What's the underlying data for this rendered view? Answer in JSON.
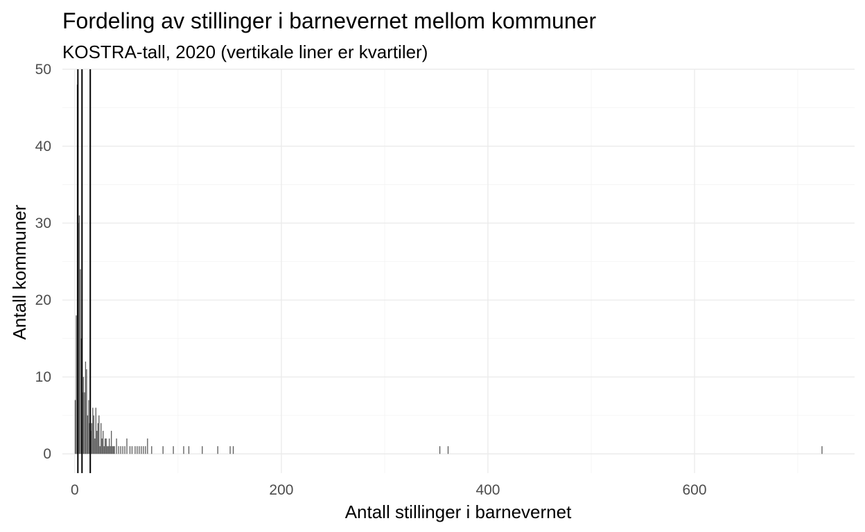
{
  "chart_data": {
    "type": "bar",
    "title": "Fordeling av stillinger i barnevernet mellom kommuner",
    "subtitle": "KOSTRA-tall, 2020 (vertikale liner er kvartiler)",
    "xlabel": "Antall stillinger i barnevernet",
    "ylabel": "Antall kommuner",
    "xlim": [
      -12,
      755
    ],
    "ylim": [
      -2.5,
      50
    ],
    "x_ticks": [
      0,
      200,
      400,
      600
    ],
    "x_minor_ticks": [
      100,
      300,
      500,
      700
    ],
    "y_ticks": [
      0,
      10,
      20,
      30,
      40,
      50
    ],
    "y_minor_ticks": [
      5,
      15,
      25,
      35,
      45
    ],
    "bin_width": 1,
    "bars_x": [
      0,
      1,
      2,
      3,
      4,
      5,
      6,
      7,
      8,
      9,
      10,
      11,
      12,
      13,
      14,
      15,
      16,
      17,
      18,
      19,
      20,
      21,
      22,
      23,
      24,
      25,
      26,
      27,
      28,
      29,
      30,
      31,
      32,
      33,
      34,
      35,
      36,
      37,
      38,
      40,
      42,
      44,
      46,
      48,
      50,
      53,
      55,
      58,
      60,
      62,
      64,
      66,
      68,
      70,
      74,
      85,
      95,
      105,
      110,
      123,
      138,
      150,
      153,
      353,
      361,
      723
    ],
    "bars_y": [
      7,
      18,
      48,
      30,
      31,
      24,
      15,
      8,
      10,
      8,
      12,
      11,
      5,
      7,
      4,
      3,
      4,
      6,
      5,
      2,
      6,
      3,
      4,
      5,
      1,
      4,
      2,
      3,
      1,
      2,
      2,
      1,
      1,
      2,
      1,
      3,
      1,
      1,
      1,
      2,
      1,
      1,
      1,
      1,
      2,
      1,
      1,
      1,
      1,
      1,
      1,
      1,
      1,
      2,
      1,
      1,
      1,
      1,
      1,
      1,
      1,
      1,
      1,
      1,
      1,
      1
    ],
    "quartiles": [
      3,
      7,
      15
    ],
    "bar_color": "#595959",
    "quartile_color": "#000000",
    "grid": true
  }
}
